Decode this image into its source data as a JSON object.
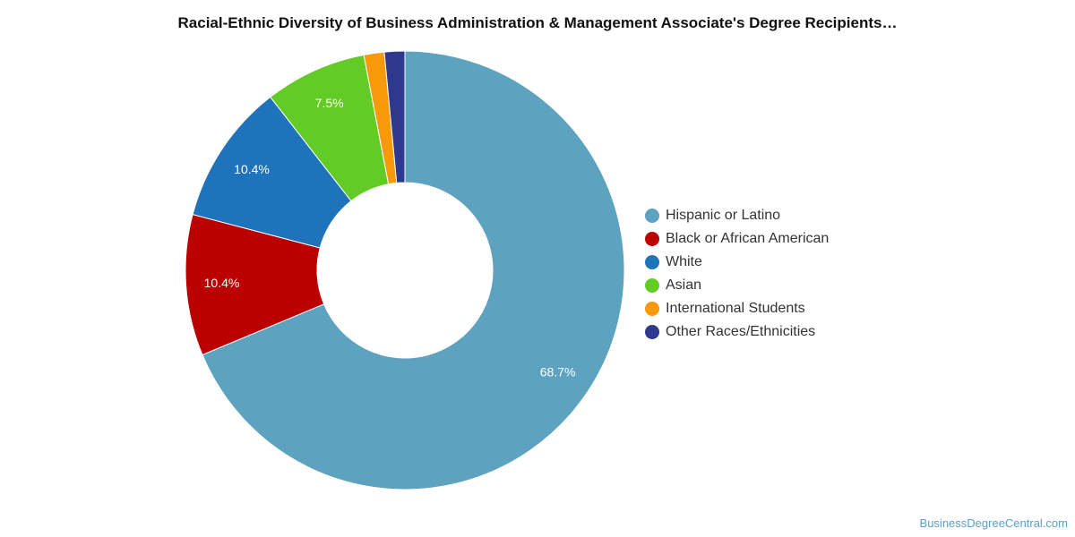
{
  "chart_data": {
    "type": "pie",
    "title": "Racial-Ethnic Diversity of Business Administration & Management Associate's Degree Recipients…",
    "donut": true,
    "legend_position": "right",
    "slices": [
      {
        "label": "Hispanic or Latino",
        "value": 68.7,
        "color": "#5da2bf",
        "data_label": "68.7%"
      },
      {
        "label": "Black or African American",
        "value": 10.4,
        "color": "#bb0000",
        "data_label": "10.4%"
      },
      {
        "label": "White",
        "value": 10.4,
        "color": "#1f73ba",
        "data_label": "10.4%"
      },
      {
        "label": "Asian",
        "value": 7.5,
        "color": "#62cb26",
        "data_label": "7.5%"
      },
      {
        "label": "International Students",
        "value": 1.5,
        "color": "#f7990a",
        "data_label": ""
      },
      {
        "label": "Other Races/Ethnicities",
        "value": 1.5,
        "color": "#2e388d",
        "data_label": ""
      }
    ]
  },
  "footer": {
    "source": "BusinessDegreeCentral.com"
  }
}
